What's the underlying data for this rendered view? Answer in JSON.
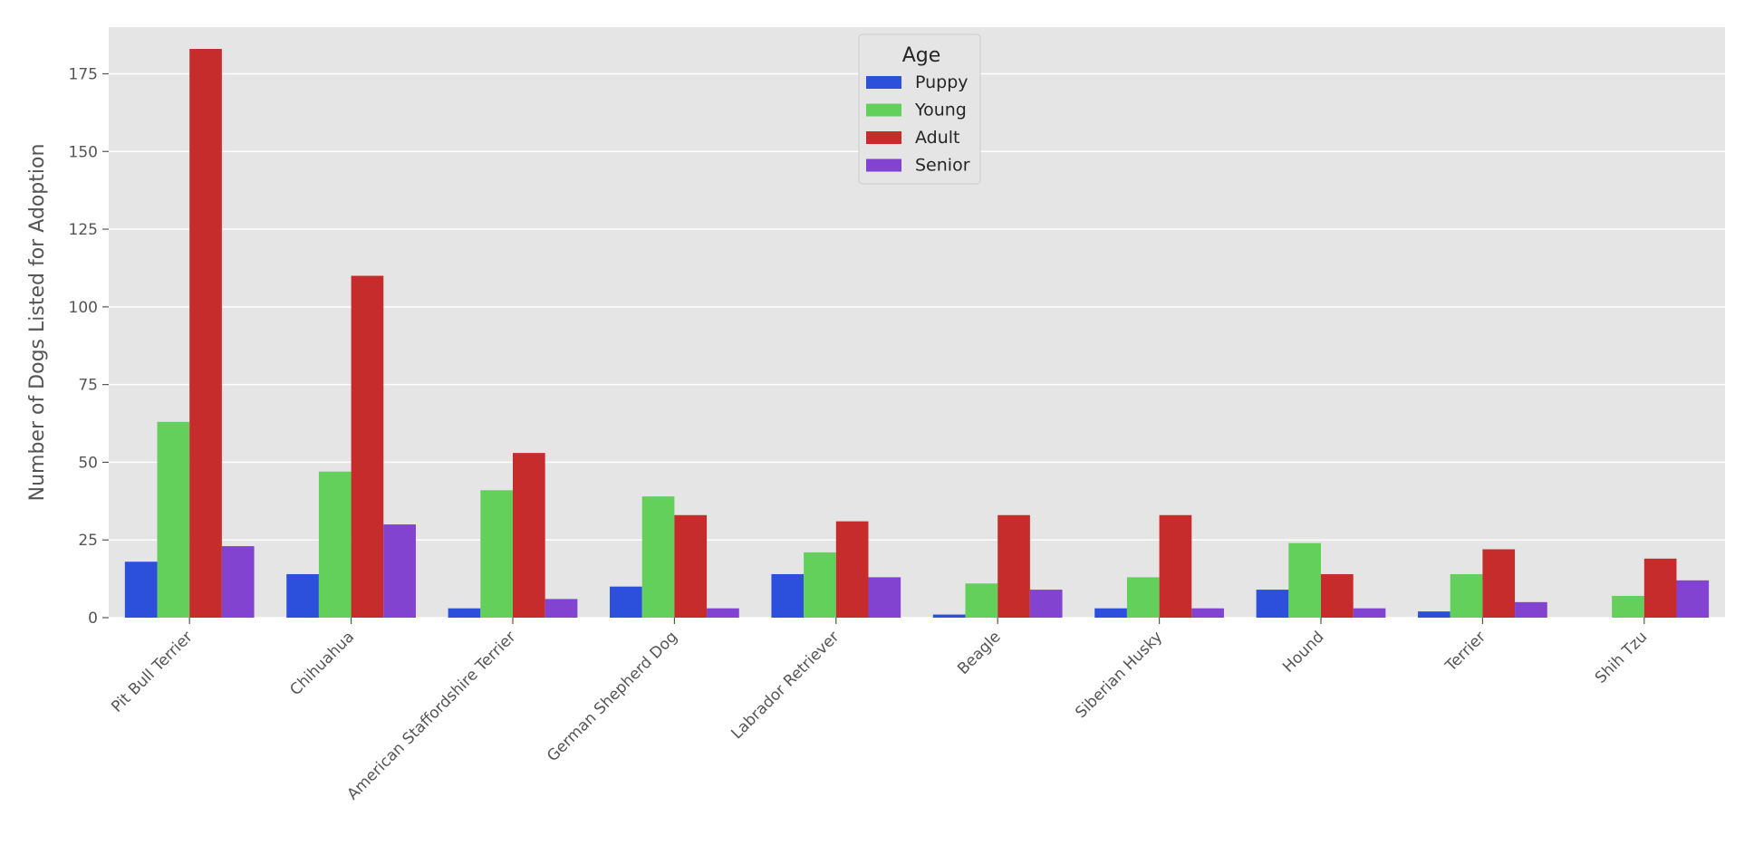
{
  "chart_data": {
    "type": "bar",
    "title": "",
    "xlabel": "",
    "ylabel": "Number of Dogs Listed for Adoption",
    "ylim": [
      0,
      190
    ],
    "yticks": [
      0,
      25,
      50,
      75,
      100,
      125,
      150,
      175
    ],
    "grid": true,
    "legend": {
      "title": "Age",
      "placement": "upper-center"
    },
    "categories": [
      "Pit Bull Terrier",
      "Chihuahua",
      "American Staffordshire Terrier",
      "German Shepherd Dog",
      "Labrador Retriever",
      "Beagle",
      "Siberian Husky",
      "Hound",
      "Terrier",
      "Shih Tzu"
    ],
    "series": [
      {
        "name": "Puppy",
        "color": "#2c4fdc",
        "values": [
          18,
          14,
          3,
          10,
          14,
          1,
          3,
          9,
          2,
          0
        ]
      },
      {
        "name": "Young",
        "color": "#62d05b",
        "values": [
          63,
          47,
          41,
          39,
          21,
          11,
          13,
          24,
          14,
          7
        ]
      },
      {
        "name": "Adult",
        "color": "#c72c2c",
        "values": [
          183,
          110,
          53,
          33,
          31,
          33,
          33,
          14,
          22,
          19
        ]
      },
      {
        "name": "Senior",
        "color": "#8143d0",
        "values": [
          23,
          30,
          6,
          3,
          13,
          9,
          3,
          3,
          5,
          12
        ]
      }
    ],
    "colors": {
      "plot_background": "#e5e5e5",
      "grid": "#ffffff"
    }
  }
}
